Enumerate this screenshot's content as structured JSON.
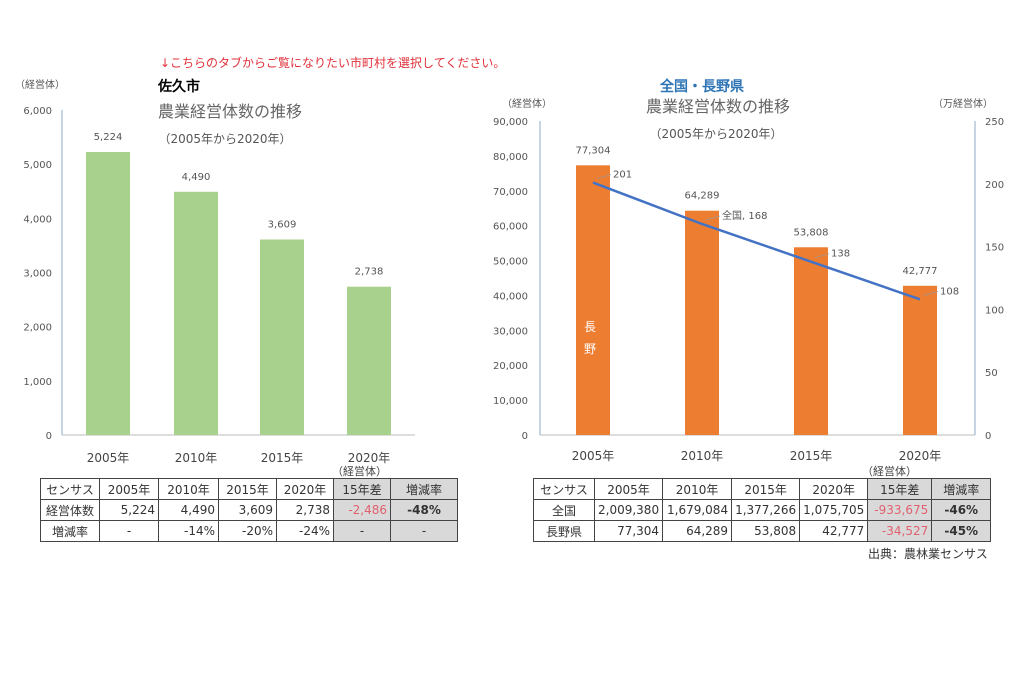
{
  "notice": "↓こちらのタブからご覧になりたい市町村を選択してください。",
  "chart_data": [
    {
      "type": "bar",
      "name_label": "佐久市",
      "title": "農業経営体数の推移",
      "subtitle": "（2005年から2020年）",
      "ylabel": "（経営体）",
      "ylim": [
        0,
        6000
      ],
      "yticks": [
        0,
        1000,
        2000,
        3000,
        4000,
        5000,
        6000
      ],
      "ytick_labels": [
        "0",
        "1,000",
        "2,000",
        "3,000",
        "4,000",
        "5,000",
        "6,000"
      ],
      "categories": [
        "2005年",
        "2010年",
        "2015年",
        "2020年"
      ],
      "values": [
        5224,
        4490,
        3609,
        2738
      ],
      "data_labels": [
        "5,224",
        "4,490",
        "3,609",
        "2,738"
      ],
      "color": "#a9d18e",
      "grid": false
    },
    {
      "type": "bar+line",
      "name_label": "全国・長野県",
      "title": "農業経営体数の推移",
      "subtitle": "（2005年から2020年）",
      "ylabel": "（経営体）",
      "y2label": "（万経営体）",
      "ylim": [
        0,
        90000
      ],
      "y2lim": [
        0,
        250
      ],
      "yticks": [
        0,
        10000,
        20000,
        30000,
        40000,
        50000,
        60000,
        70000,
        80000,
        90000
      ],
      "ytick_labels": [
        "0",
        "10,000",
        "20,000",
        "30,000",
        "40,000",
        "50,000",
        "60,000",
        "70,000",
        "80,000",
        "90,000"
      ],
      "y2ticks": [
        0,
        50,
        100,
        150,
        200,
        250
      ],
      "y2tick_labels": [
        "0",
        "50",
        "100",
        "150",
        "200",
        "250"
      ],
      "categories": [
        "2005年",
        "2010年",
        "2015年",
        "2020年"
      ],
      "series": [
        {
          "name": "長野",
          "type": "bar",
          "axis": "left",
          "values": [
            77304,
            64289,
            53808,
            42777
          ],
          "data_labels": [
            "77,304",
            "64,289",
            "53,808",
            "42,777"
          ],
          "color": "#ed7d31"
        },
        {
          "name": "全国",
          "type": "line",
          "axis": "right",
          "values": [
            201,
            168,
            138,
            108
          ],
          "data_labels": [
            "201",
            "全国, 168",
            "138",
            "108"
          ],
          "color": "#4472c4"
        }
      ],
      "bar_label_chars": [
        "長",
        "野"
      ],
      "grid": false
    }
  ],
  "table_left": {
    "unit": "（経営体）",
    "header": [
      "センサス",
      "2005年",
      "2010年",
      "2015年",
      "2020年",
      "15年差",
      "増減率"
    ],
    "rows": [
      [
        "経営体数",
        "5,224",
        "4,490",
        "3,609",
        "2,738",
        "-2,486",
        "-48%"
      ],
      [
        "増減率",
        "-",
        "-14%",
        "-20%",
        "-24%",
        "-",
        "-"
      ]
    ]
  },
  "table_right": {
    "unit": "（経営体）",
    "header": [
      "センサス",
      "2005年",
      "2010年",
      "2015年",
      "2020年",
      "15年差",
      "増減率"
    ],
    "rows": [
      [
        "全国",
        "2,009,380",
        "1,679,084",
        "1,377,266",
        "1,075,705",
        "-933,675",
        "-46%"
      ],
      [
        "長野県",
        "77,304",
        "64,289",
        "53,808",
        "42,777",
        "-34,527",
        "-45%"
      ]
    ]
  },
  "source": "出典：農林業センサス"
}
